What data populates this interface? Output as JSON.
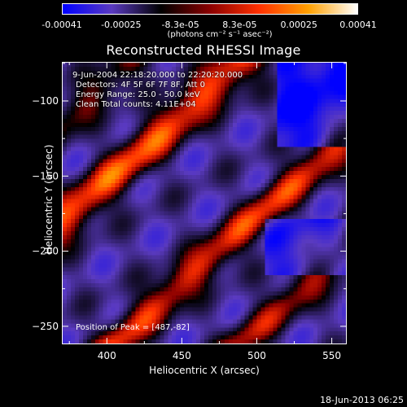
{
  "colorbar": {
    "ticks": [
      "-0.00041",
      "-0.00025",
      "-8.3e-05",
      "8.3e-05",
      "0.00025",
      "0.00041"
    ],
    "unit_label": "(photons cm⁻² s⁻¹ asec⁻²)",
    "min": -0.00041,
    "max": 0.00041
  },
  "info": {
    "time_range": "9-Jun-2004 22:18:20.000 to 22:20:20.000",
    "detectors": "Detectors: 4F 5F 6F 7F 8F, Att 0",
    "energy_range": "Energy Range: 25.0 - 50.0 keV",
    "algorithm_counts": "Clean     Total counts: 4.11E+04",
    "peak": "Position of Peak = [487,-82]"
  },
  "footer": {
    "date": "18-Jun-2013 06:25"
  },
  "chart_data": {
    "type": "heatmap",
    "title": "Reconstructed RHESSI Image",
    "xlabel": "Heliocentric X (arcsec)",
    "ylabel": "Heliocentric Y (arcsec)",
    "xlim": [
      370,
      560
    ],
    "ylim": [
      -262,
      -74
    ],
    "x_ticks": [
      400,
      450,
      500,
      550
    ],
    "y_ticks": [
      -100,
      -150,
      -200,
      -250
    ],
    "colorscale": [
      "#0000ff",
      "#5a3ac0",
      "#000000",
      "#8a0000",
      "#ff3000",
      "#ffa000",
      "#ffffff"
    ]
  }
}
